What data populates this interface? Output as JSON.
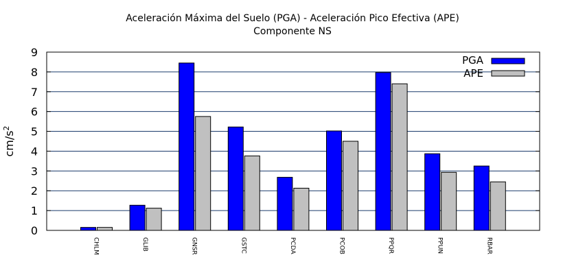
{
  "chart_data": {
    "type": "bar",
    "title": "Aceleración Máxima del Suelo (PGA) -  Aceleración Pico Efectiva (APE)",
    "subtitle": "Componente NS",
    "ylabel": "cm/s",
    "ylabel_sup": "2",
    "xlabel": "",
    "ylim": [
      0,
      9
    ],
    "yticks": [
      0,
      1,
      2,
      3,
      4,
      5,
      6,
      7,
      8,
      9
    ],
    "grid": true,
    "legend_position": "top-right",
    "categories": [
      "CHLM",
      "GLIB",
      "GNSR",
      "GSTC",
      "PCDA",
      "PCOB",
      "PPQR",
      "PPUN",
      "RBAR"
    ],
    "series": [
      {
        "name": "PGA",
        "color": "#0000ff",
        "values": [
          0.15,
          1.27,
          8.45,
          5.22,
          2.68,
          5.02,
          7.97,
          3.87,
          3.25
        ]
      },
      {
        "name": "APE",
        "color": "#c0c0c0",
        "values": [
          0.15,
          1.12,
          5.75,
          3.76,
          2.13,
          4.5,
          7.4,
          2.93,
          2.45
        ]
      }
    ]
  }
}
